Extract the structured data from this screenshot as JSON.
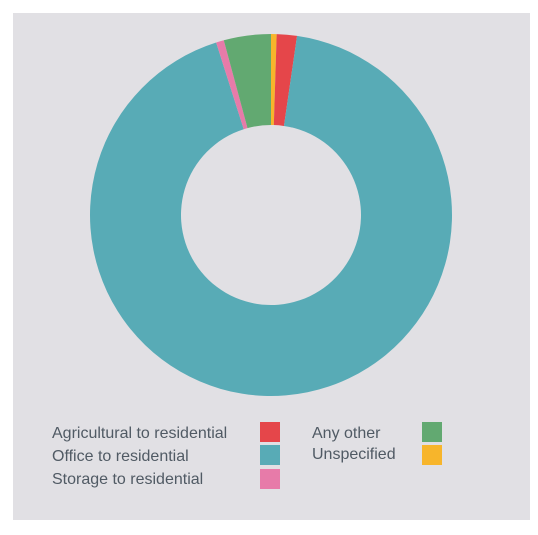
{
  "chart_data": {
    "type": "pie",
    "donut": true,
    "title": "",
    "categories": [
      "Agricultural to residential",
      "Office to residential",
      "Storage to residential",
      "Any other",
      "Unspecified"
    ],
    "values": [
      1.8,
      92.8,
      0.7,
      4.2,
      0.5
    ],
    "colors": [
      "#e5464a",
      "#58abb6",
      "#e77ba9",
      "#62a971",
      "#f7b52b"
    ],
    "slice_order_clockwise_from_top": [
      "Unspecified",
      "Agricultural to residential",
      "Office to residential",
      "Storage to residential",
      "Any other"
    ],
    "legend": [
      {
        "label": "Agricultural to residential",
        "color": "#e5464a"
      },
      {
        "label": "Office to residential",
        "color": "#58abb6"
      },
      {
        "label": "Storage to residential",
        "color": "#e77ba9"
      },
      {
        "label": "Any other",
        "color": "#62a971"
      },
      {
        "label": "Unspecified",
        "color": "#f7b52b"
      }
    ],
    "legend_placement": "bottom"
  }
}
